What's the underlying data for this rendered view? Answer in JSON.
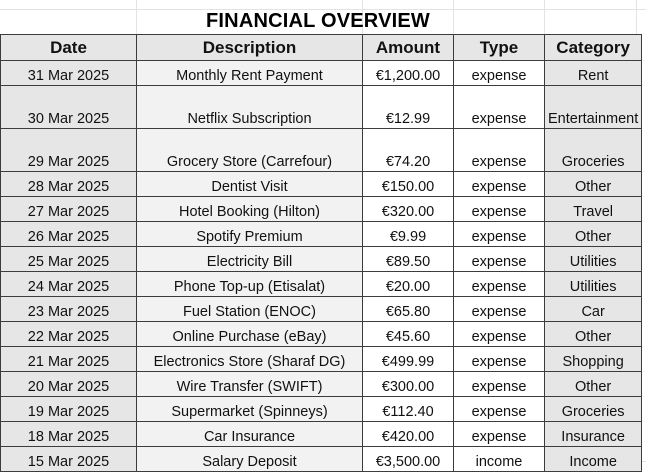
{
  "sheet": {
    "title": "FINANCIAL OVERVIEW",
    "columns": [
      "Date",
      "Description",
      "Amount",
      "Type",
      "Category"
    ],
    "rows": [
      {
        "date": "31 Mar 2025",
        "description": "Monthly Rent Payment",
        "amount": "€1,200.00",
        "type": "expense",
        "category": "Rent",
        "tall": false
      },
      {
        "date": "30 Mar 2025",
        "description": "Netflix Subscription",
        "amount": "€12.99",
        "type": "expense",
        "category": "Entertainment",
        "tall": true
      },
      {
        "date": "29 Mar 2025",
        "description": "Grocery Store (Carrefour)",
        "amount": "€74.20",
        "type": "expense",
        "category": "Groceries",
        "tall": true
      },
      {
        "date": "28 Mar 2025",
        "description": "Dentist Visit",
        "amount": "€150.00",
        "type": "expense",
        "category": "Other",
        "tall": false
      },
      {
        "date": "27 Mar 2025",
        "description": "Hotel Booking (Hilton)",
        "amount": "€320.00",
        "type": "expense",
        "category": "Travel",
        "tall": false
      },
      {
        "date": "26 Mar 2025",
        "description": "Spotify Premium",
        "amount": "€9.99",
        "type": "expense",
        "category": "Other",
        "tall": false
      },
      {
        "date": "25 Mar 2025",
        "description": "Electricity Bill",
        "amount": "€89.50",
        "type": "expense",
        "category": "Utilities",
        "tall": false
      },
      {
        "date": "24 Mar 2025",
        "description": "Phone Top-up (Etisalat)",
        "amount": "€20.00",
        "type": "expense",
        "category": "Utilities",
        "tall": false
      },
      {
        "date": "23 Mar 2025",
        "description": "Fuel Station (ENOC)",
        "amount": "€65.80",
        "type": "expense",
        "category": "Car",
        "tall": false
      },
      {
        "date": "22 Mar 2025",
        "description": "Online Purchase (eBay)",
        "amount": "€45.60",
        "type": "expense",
        "category": "Other",
        "tall": false
      },
      {
        "date": "21 Mar 2025",
        "description": "Electronics Store (Sharaf DG)",
        "amount": "€499.99",
        "type": "expense",
        "category": "Shopping",
        "tall": false
      },
      {
        "date": "20 Mar 2025",
        "description": "Wire Transfer (SWIFT)",
        "amount": "€300.00",
        "type": "expense",
        "category": "Other",
        "tall": false
      },
      {
        "date": "19 Mar 2025",
        "description": "Supermarket (Spinneys)",
        "amount": "€112.40",
        "type": "expense",
        "category": "Groceries",
        "tall": false
      },
      {
        "date": "18 Mar 2025",
        "description": "Car Insurance",
        "amount": "€420.00",
        "type": "expense",
        "category": "Insurance",
        "tall": false
      },
      {
        "date": "15 Mar 2025",
        "description": "Salary Deposit",
        "amount": "€3,500.00",
        "type": "income",
        "category": "Income",
        "tall": false
      }
    ]
  }
}
